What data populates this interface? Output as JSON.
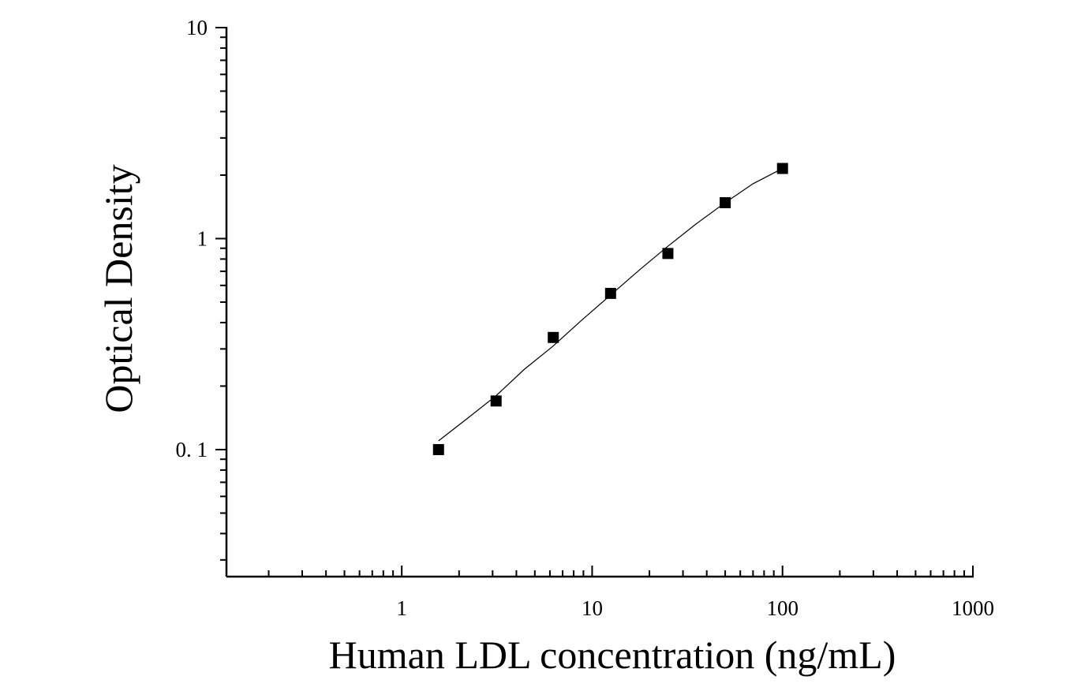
{
  "chart_data": {
    "type": "scatter",
    "title": "",
    "xlabel": "Human LDL concentration (ng/mL)",
    "ylabel": "Optical Density",
    "x_scale": "log",
    "y_scale": "log",
    "xlim": [
      0.12,
      1000
    ],
    "ylim": [
      0.025,
      10
    ],
    "x_ticks": [
      1,
      10,
      100,
      1000
    ],
    "x_tick_labels": [
      "1",
      "10",
      "100",
      "1000"
    ],
    "y_ticks": [
      0.1,
      1,
      10
    ],
    "y_tick_labels": [
      "0. 1",
      "1",
      "10"
    ],
    "grid": false,
    "legend": "none",
    "marker": "square",
    "marker_color": "#000000",
    "line_color": "#000000",
    "series": [
      {
        "x": [
          1.56,
          3.13,
          6.25,
          12.5,
          25,
          50,
          100
        ],
        "y": [
          0.1,
          0.17,
          0.34,
          0.55,
          0.85,
          1.48,
          2.15
        ]
      }
    ],
    "fit_curve": {
      "x": [
        1.56,
        2.2,
        3.13,
        4.4,
        6.25,
        8.8,
        12.5,
        17.7,
        25,
        35,
        50,
        70,
        100
      ],
      "y": [
        0.11,
        0.14,
        0.18,
        0.24,
        0.31,
        0.41,
        0.54,
        0.71,
        0.92,
        1.17,
        1.48,
        1.82,
        2.15
      ]
    }
  }
}
